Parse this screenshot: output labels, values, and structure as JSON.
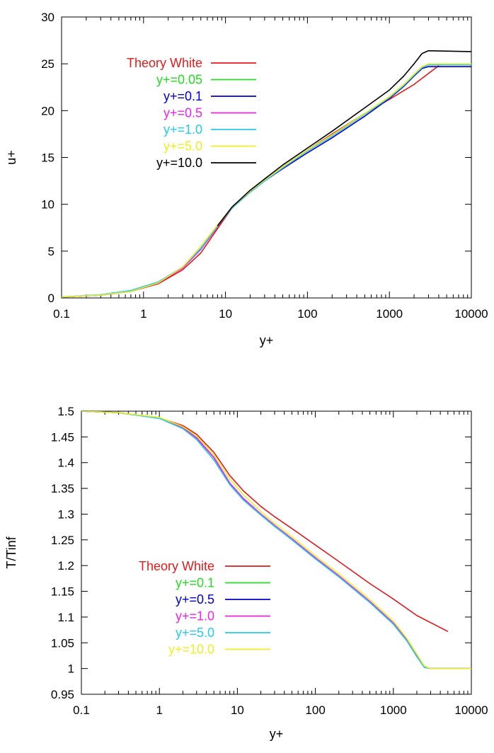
{
  "chart_data": [
    {
      "type": "line",
      "xlabel": "y+",
      "ylabel": "u+",
      "xscale": "log",
      "xlim": [
        0.1,
        10000
      ],
      "ylim": [
        0,
        30
      ],
      "xticks": [
        "0.1",
        "1",
        "10",
        "100",
        "1000",
        "10000"
      ],
      "yticks": [
        "0",
        "5",
        "10",
        "15",
        "20",
        "25",
        "30"
      ],
      "legend_position": "top-left",
      "grid": false,
      "series": [
        {
          "name": "Theory White",
          "color": "#e41a1c",
          "x": [
            0.1,
            0.3,
            0.7,
            1.5,
            3,
            5,
            8,
            12,
            20,
            30,
            50,
            100,
            200,
            500,
            1000,
            2000,
            4000
          ],
          "y": [
            0.1,
            0.3,
            0.7,
            1.5,
            3,
            4.8,
            7.4,
            9.6,
            11.4,
            12.6,
            14.0,
            15.8,
            17.5,
            19.7,
            21.2,
            22.8,
            24.8
          ]
        },
        {
          "name": "y+=0.05",
          "color": "#22dd22",
          "x": [
            0.1,
            0.3,
            0.7,
            1.5,
            3,
            5,
            8,
            12,
            20,
            30,
            50,
            100,
            200,
            500,
            1000,
            1500,
            2000,
            2500,
            3000,
            10000
          ],
          "y": [
            0.1,
            0.3,
            0.7,
            1.6,
            3.2,
            5.2,
            7.6,
            9.6,
            11.3,
            12.5,
            13.9,
            15.7,
            17.3,
            19.6,
            21.4,
            22.7,
            23.8,
            24.6,
            24.9,
            24.9
          ]
        },
        {
          "name": "y+=0.1",
          "color": "#0000cc",
          "x": [
            0.1,
            0.3,
            0.7,
            1.5,
            3,
            5,
            8,
            12,
            20,
            30,
            50,
            100,
            200,
            500,
            1000,
            1500,
            2000,
            2500,
            3000,
            10000
          ],
          "y": [
            0.1,
            0.3,
            0.7,
            1.6,
            3.2,
            5.2,
            7.6,
            9.6,
            11.3,
            12.5,
            13.8,
            15.5,
            17.1,
            19.4,
            21.3,
            22.6,
            23.7,
            24.5,
            24.7,
            24.7
          ]
        },
        {
          "name": "y+=0.5",
          "color": "#ee22ee",
          "x": [
            0.1,
            0.3,
            0.7,
            1.5,
            3,
            5,
            8,
            12,
            20,
            30,
            50,
            100,
            200,
            500,
            1000,
            1500,
            2000,
            2500,
            3000,
            10000
          ],
          "y": [
            0.1,
            0.3,
            0.7,
            1.6,
            3.2,
            5.2,
            7.6,
            9.6,
            11.3,
            12.5,
            13.9,
            15.7,
            17.3,
            19.6,
            21.4,
            22.7,
            23.8,
            24.6,
            24.9,
            24.9
          ]
        },
        {
          "name": "y+=1.0",
          "color": "#22ccee",
          "x": [
            0.1,
            0.3,
            0.7,
            1.5,
            3,
            5,
            8,
            12,
            20,
            30,
            50,
            100,
            200,
            500,
            1000,
            1500,
            2000,
            2500,
            3000,
            10000
          ],
          "y": [
            0.1,
            0.35,
            0.8,
            1.7,
            3.3,
            5.3,
            7.7,
            9.6,
            11.3,
            12.5,
            13.9,
            15.7,
            17.3,
            19.6,
            21.4,
            22.7,
            23.8,
            24.6,
            24.9,
            24.9
          ]
        },
        {
          "name": "y+=5.0",
          "color": "#eeee22",
          "x": [
            0.1,
            0.3,
            0.7,
            1.5,
            3,
            5,
            8,
            12,
            20,
            30,
            50,
            100,
            200,
            500,
            1000,
            1500,
            2000,
            2500,
            3000,
            10000
          ],
          "y": [
            0.1,
            0.3,
            0.7,
            1.6,
            3.3,
            5.5,
            7.8,
            9.7,
            11.4,
            12.6,
            14.0,
            15.8,
            17.4,
            19.7,
            21.5,
            22.8,
            23.9,
            24.7,
            25.0,
            25.0
          ]
        },
        {
          "name": "y+=10.0",
          "color": "#000000",
          "x": [
            8,
            12,
            20,
            30,
            50,
            100,
            200,
            500,
            1000,
            1500,
            2000,
            2500,
            3000,
            10000
          ],
          "y": [
            7.7,
            9.7,
            11.5,
            12.7,
            14.2,
            16.0,
            17.8,
            20.3,
            22.2,
            23.7,
            25.0,
            26.1,
            26.4,
            26.3
          ]
        }
      ]
    },
    {
      "type": "line",
      "xlabel": "y+",
      "ylabel": "T/Tinf",
      "xscale": "log",
      "xlim": [
        0.1,
        10000
      ],
      "ylim": [
        0.95,
        1.5
      ],
      "xticks": [
        "0.1",
        "1",
        "10",
        "100",
        "1000",
        "10000"
      ],
      "yticks": [
        "0.95",
        "1",
        "1.05",
        "1.1",
        "1.15",
        "1.2",
        "1.25",
        "1.3",
        "1.35",
        "1.4",
        "1.45",
        "1.5"
      ],
      "legend_position": "bottom-left",
      "grid": false,
      "series": [
        {
          "name": "Theory White",
          "color": "#e41a1c",
          "x": [
            0.1,
            0.3,
            1,
            2,
            3,
            5,
            8,
            12,
            20,
            30,
            50,
            100,
            200,
            500,
            1000,
            2000,
            5000
          ],
          "y": [
            1.5,
            1.497,
            1.487,
            1.472,
            1.455,
            1.42,
            1.375,
            1.345,
            1.315,
            1.295,
            1.272,
            1.24,
            1.208,
            1.165,
            1.135,
            1.103,
            1.072
          ]
        },
        {
          "name": "y+=0.1",
          "color": "#22dd22",
          "x": [
            0.1,
            0.3,
            1,
            2,
            3,
            5,
            8,
            12,
            20,
            30,
            50,
            100,
            200,
            500,
            1000,
            1500,
            2000,
            2500,
            3000,
            10000
          ],
          "y": [
            1.5,
            1.497,
            1.487,
            1.468,
            1.448,
            1.41,
            1.36,
            1.33,
            1.3,
            1.278,
            1.252,
            1.215,
            1.18,
            1.13,
            1.088,
            1.055,
            1.025,
            1.003,
            1.0,
            1.0
          ]
        },
        {
          "name": "y+=0.5",
          "color": "#0000cc",
          "x": [
            0.1,
            0.3,
            1,
            2,
            3,
            5,
            8,
            12,
            20,
            30,
            50,
            100,
            200,
            500,
            1000,
            1500,
            2000,
            2500,
            3000,
            10000
          ],
          "y": [
            1.5,
            1.497,
            1.487,
            1.468,
            1.448,
            1.41,
            1.36,
            1.33,
            1.3,
            1.278,
            1.252,
            1.215,
            1.18,
            1.13,
            1.088,
            1.055,
            1.025,
            1.003,
            1.0,
            1.0
          ]
        },
        {
          "name": "y+=1.0",
          "color": "#ee22ee",
          "x": [
            0.1,
            0.3,
            1,
            2,
            3,
            5,
            8,
            12,
            20,
            30,
            50,
            100,
            200,
            500,
            1000,
            1500,
            2000,
            2500,
            3000,
            10000
          ],
          "y": [
            1.5,
            1.497,
            1.487,
            1.468,
            1.448,
            1.41,
            1.36,
            1.33,
            1.3,
            1.278,
            1.252,
            1.215,
            1.18,
            1.13,
            1.088,
            1.055,
            1.025,
            1.003,
            1.0,
            1.0
          ]
        },
        {
          "name": "y+=5.0",
          "color": "#22ccee",
          "x": [
            0.1,
            0.3,
            1,
            2,
            3,
            5,
            8,
            12,
            20,
            30,
            50,
            100,
            200,
            500,
            1000,
            1500,
            2000,
            2500,
            3000,
            10000
          ],
          "y": [
            1.5,
            1.497,
            1.486,
            1.466,
            1.445,
            1.405,
            1.357,
            1.327,
            1.298,
            1.276,
            1.25,
            1.213,
            1.178,
            1.128,
            1.086,
            1.053,
            1.023,
            1.002,
            1.0,
            1.0
          ]
        },
        {
          "name": "y+=10.0",
          "color": "#eeee22",
          "x": [
            0.1,
            0.3,
            1,
            2,
            3,
            5,
            8,
            12,
            20,
            30,
            50,
            100,
            200,
            500,
            1000,
            1500,
            2000,
            2500,
            3000,
            10000
          ],
          "y": [
            1.5,
            1.497,
            1.488,
            1.47,
            1.452,
            1.415,
            1.368,
            1.337,
            1.305,
            1.282,
            1.256,
            1.219,
            1.184,
            1.134,
            1.092,
            1.058,
            1.028,
            1.005,
            1.0,
            1.0
          ]
        }
      ]
    }
  ]
}
